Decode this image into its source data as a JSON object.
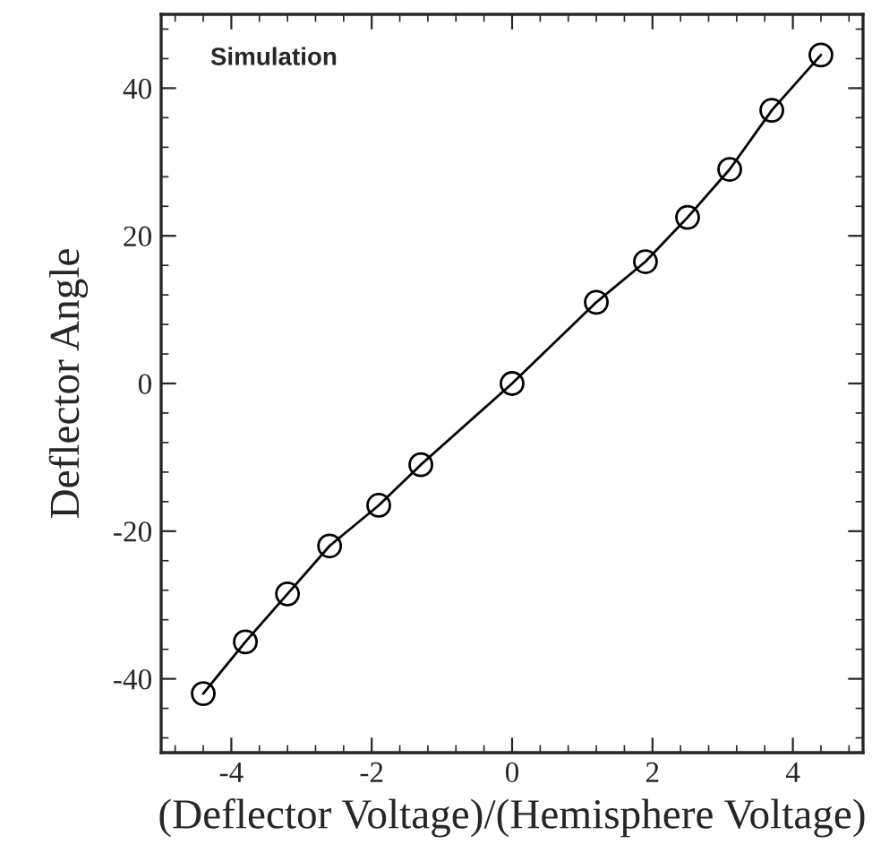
{
  "chart_data": {
    "type": "line",
    "xlabel": "(Deflector Voltage)/(Hemisphere Voltage)",
    "ylabel": "Deflector Angle",
    "annotations": [
      "Simulation"
    ],
    "x": [
      -4.4,
      -3.8,
      -3.2,
      -2.6,
      -1.9,
      -1.3,
      0,
      1.2,
      1.9,
      2.5,
      3.1,
      3.7,
      4.4
    ],
    "series": [
      {
        "color": "#000000",
        "values": [
          -42,
          -35,
          -28.5,
          -22,
          -16.5,
          -11,
          0,
          11,
          16.5,
          22.5,
          29,
          37,
          44.5
        ]
      }
    ],
    "xlim": [
      -5,
      5
    ],
    "ylim": [
      -50,
      50
    ],
    "xticks": [
      -4,
      -2,
      0,
      2,
      4
    ],
    "yticks": [
      -40,
      -20,
      0,
      20,
      40
    ],
    "marker": "circle",
    "line_style": "solid",
    "grid": false,
    "legend": false
  }
}
